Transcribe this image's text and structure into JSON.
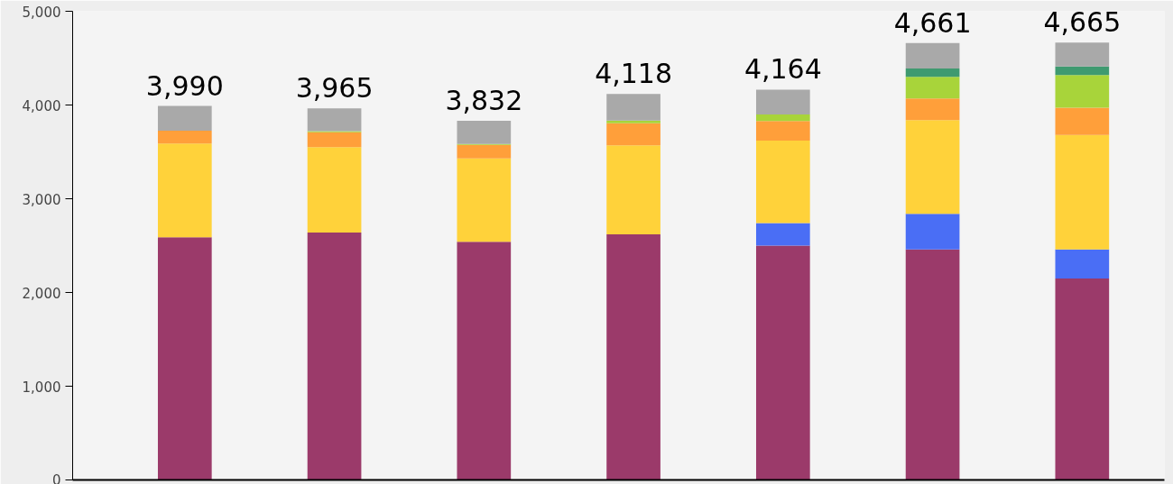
{
  "chart_data": {
    "type": "bar",
    "stacked": true,
    "categories": [
      null,
      null,
      null,
      null,
      null,
      null,
      null
    ],
    "series": [
      {
        "color": "#9b3a6a",
        "values": [
          2590,
          2640,
          2540,
          2620,
          2500,
          2460,
          2150
        ]
      },
      {
        "color": "#4a6ef5",
        "values": [
          0,
          0,
          0,
          0,
          240,
          380,
          310
        ]
      },
      {
        "color": "#ffd23a",
        "values": [
          1000,
          910,
          890,
          950,
          880,
          1000,
          1220
        ]
      },
      {
        "color": "#ff9f3a",
        "values": [
          135,
          160,
          145,
          235,
          210,
          230,
          290
        ]
      },
      {
        "color": "#a8d43a",
        "values": [
          0,
          10,
          10,
          30,
          70,
          230,
          350
        ]
      },
      {
        "color": "#3f9a70",
        "values": [
          0,
          0,
          0,
          0,
          0,
          90,
          90
        ]
      },
      {
        "color": "#a9a9a9",
        "values": [
          265,
          245,
          247,
          283,
          264,
          271,
          255
        ]
      }
    ],
    "totals": [
      "3,990",
      "3,965",
      "3,832",
      "4,118",
      "4,164",
      "4,661",
      "4,665"
    ],
    "ylim": [
      0,
      5000
    ],
    "yticks": [
      {
        "value": 0,
        "label": "0"
      },
      {
        "value": 1000,
        "label": "1,000"
      },
      {
        "value": 2000,
        "label": "2,000"
      },
      {
        "value": 3000,
        "label": "3,000"
      },
      {
        "value": 4000,
        "label": "4,000"
      },
      {
        "value": 5000,
        "label": "5,000"
      }
    ],
    "grid": false
  }
}
